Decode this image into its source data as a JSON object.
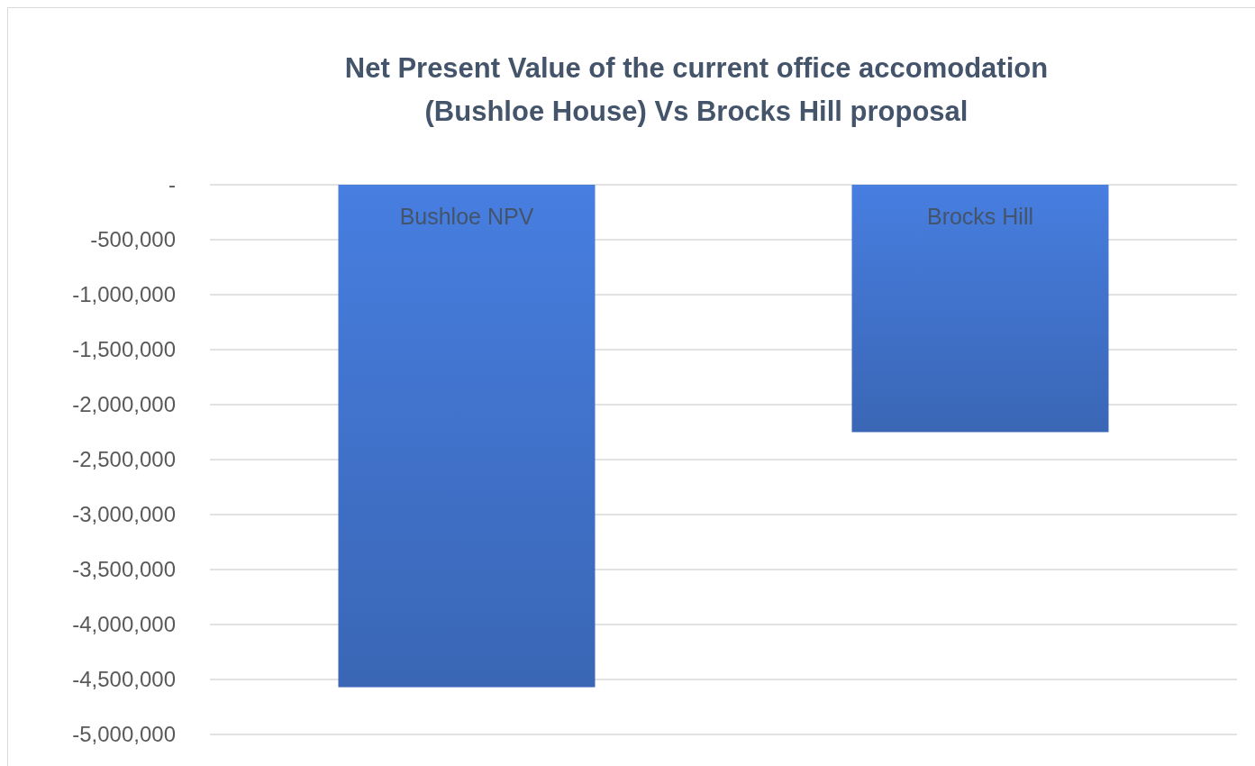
{
  "chart_data": {
    "type": "bar",
    "title": "Net Present Value of the current office accomodation (Bushloe House) Vs Brocks Hill proposal",
    "categories": [
      "Bushloe NPV",
      "Brocks Hill"
    ],
    "values": [
      -4570000,
      -2250000
    ],
    "color": "#3f6fc6",
    "ylim": [
      -5000000,
      0
    ],
    "yticks": [
      {
        "value": 0,
        "label": "-"
      },
      {
        "value": -500000,
        "label": "-500,000"
      },
      {
        "value": -1000000,
        "label": "-1,000,000"
      },
      {
        "value": -1500000,
        "label": "-1,500,000"
      },
      {
        "value": -2000000,
        "label": "-2,000,000"
      },
      {
        "value": -2500000,
        "label": "-2,500,000"
      },
      {
        "value": -3000000,
        "label": "-3,000,000"
      },
      {
        "value": -3500000,
        "label": "-3,500,000"
      },
      {
        "value": -4000000,
        "label": "-4,000,000"
      },
      {
        "value": -4500000,
        "label": "-4,500,000"
      },
      {
        "value": -5000000,
        "label": "-5,000,000"
      }
    ],
    "grid": "y"
  }
}
